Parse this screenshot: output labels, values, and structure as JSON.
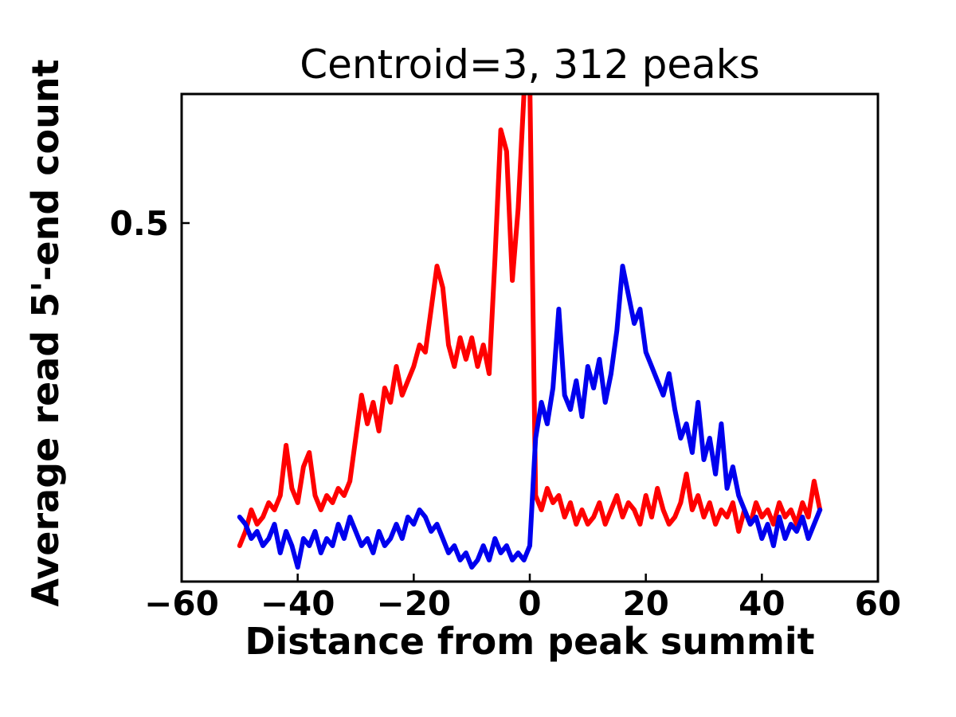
{
  "chart_data": {
    "type": "line",
    "title": "Centroid=3, 312 peaks",
    "xlabel": "Distance from peak summit",
    "ylabel": "Average read 5'-end count",
    "xlim": [
      -60,
      60
    ],
    "ylim": [
      0,
      0.68
    ],
    "grid": false,
    "legend": "none",
    "xticks": [
      {
        "v": -60,
        "label": "−60"
      },
      {
        "v": -40,
        "label": "−40"
      },
      {
        "v": -20,
        "label": "−20"
      },
      {
        "v": 0,
        "label": "0"
      },
      {
        "v": 20,
        "label": "20"
      },
      {
        "v": 40,
        "label": "40"
      },
      {
        "v": 60,
        "label": "60"
      }
    ],
    "yticks": [
      {
        "v": 0.5,
        "label": "0.5"
      }
    ],
    "x_start": -50,
    "x_step": 1,
    "series": [
      {
        "name": "red",
        "color": "#ff0000",
        "values": [
          0.05,
          0.07,
          0.1,
          0.08,
          0.09,
          0.11,
          0.1,
          0.12,
          0.19,
          0.13,
          0.11,
          0.16,
          0.18,
          0.12,
          0.1,
          0.12,
          0.11,
          0.13,
          0.12,
          0.14,
          0.2,
          0.26,
          0.22,
          0.25,
          0.21,
          0.27,
          0.25,
          0.3,
          0.26,
          0.28,
          0.3,
          0.33,
          0.32,
          0.38,
          0.44,
          0.41,
          0.33,
          0.3,
          0.34,
          0.31,
          0.34,
          0.3,
          0.33,
          0.29,
          0.45,
          0.63,
          0.6,
          0.42,
          0.52,
          0.68,
          0.7,
          0.12,
          0.1,
          0.13,
          0.11,
          0.12,
          0.09,
          0.11,
          0.08,
          0.1,
          0.08,
          0.09,
          0.11,
          0.08,
          0.1,
          0.12,
          0.09,
          0.11,
          0.1,
          0.08,
          0.12,
          0.09,
          0.13,
          0.1,
          0.08,
          0.09,
          0.11,
          0.15,
          0.1,
          0.12,
          0.09,
          0.11,
          0.08,
          0.1,
          0.09,
          0.11,
          0.07,
          0.1,
          0.08,
          0.11,
          0.09,
          0.1,
          0.08,
          0.11,
          0.09,
          0.1,
          0.08,
          0.11,
          0.09,
          0.14,
          0.1
        ]
      },
      {
        "name": "blue",
        "color": "#0000ee",
        "values": [
          0.09,
          0.08,
          0.06,
          0.07,
          0.05,
          0.06,
          0.08,
          0.04,
          0.07,
          0.05,
          0.02,
          0.06,
          0.05,
          0.07,
          0.04,
          0.06,
          0.05,
          0.08,
          0.06,
          0.09,
          0.07,
          0.05,
          0.06,
          0.04,
          0.07,
          0.05,
          0.06,
          0.08,
          0.06,
          0.09,
          0.08,
          0.1,
          0.09,
          0.07,
          0.08,
          0.06,
          0.04,
          0.05,
          0.03,
          0.04,
          0.02,
          0.03,
          0.05,
          0.03,
          0.06,
          0.04,
          0.05,
          0.03,
          0.04,
          0.03,
          0.05,
          0.2,
          0.25,
          0.22,
          0.27,
          0.38,
          0.26,
          0.24,
          0.28,
          0.23,
          0.3,
          0.27,
          0.31,
          0.25,
          0.29,
          0.35,
          0.44,
          0.4,
          0.36,
          0.38,
          0.32,
          0.3,
          0.28,
          0.26,
          0.29,
          0.24,
          0.2,
          0.22,
          0.18,
          0.25,
          0.17,
          0.2,
          0.15,
          0.22,
          0.13,
          0.16,
          0.12,
          0.1,
          0.08,
          0.09,
          0.06,
          0.08,
          0.05,
          0.09,
          0.06,
          0.08,
          0.07,
          0.09,
          0.06,
          0.08,
          0.1
        ]
      }
    ]
  }
}
